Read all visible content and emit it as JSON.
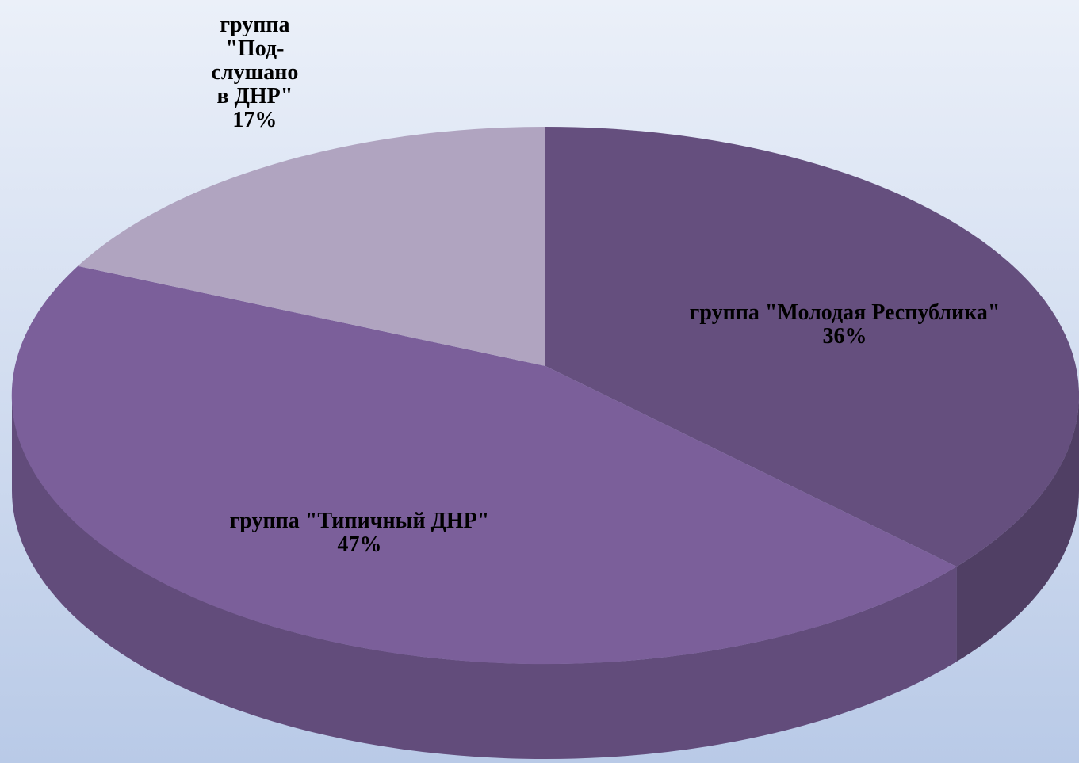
{
  "chart_data": {
    "type": "pie3d",
    "categories": [
      "группа \"Молодая Республика\"",
      "группа \"Типичный ДНР\"",
      "группа \"Под-слушано в ДНР\""
    ],
    "values": [
      36,
      47,
      17
    ],
    "value_labels": [
      "36%",
      "47%",
      "17%"
    ],
    "colors": [
      "#654f7e",
      "#7b5f9a",
      "#b0a4c0"
    ]
  }
}
